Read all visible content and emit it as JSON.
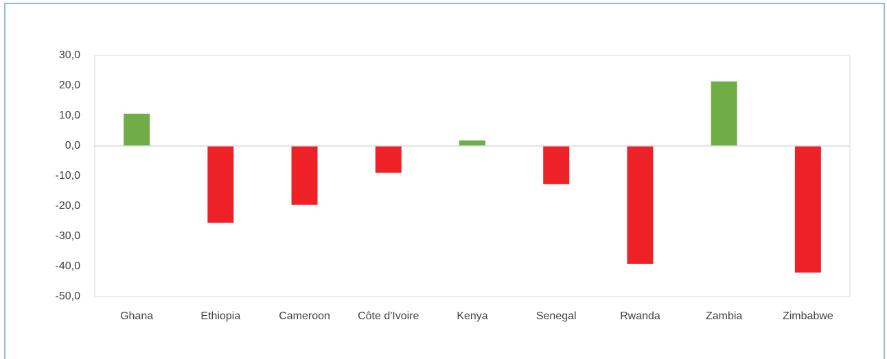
{
  "chart_data": {
    "type": "bar",
    "categories": [
      "Ghana",
      "Ethiopia",
      "Cameroon",
      "Côte d'Ivoire",
      "Kenya",
      "Senegal",
      "Rwanda",
      "Zambia",
      "Zimbabwe"
    ],
    "values": [
      10.7,
      -25.5,
      -19.5,
      -8.9,
      1.8,
      -12.7,
      -39.1,
      21.4,
      -42.0
    ],
    "positive_color": "#70ad47",
    "negative_color": "#ee2126",
    "ylim": [
      -50,
      30
    ],
    "yticks": [
      {
        "value": -50,
        "label": "-50,0"
      },
      {
        "value": -40,
        "label": "-40,0"
      },
      {
        "value": -30,
        "label": "-30,0"
      },
      {
        "value": -20,
        "label": "-20,0"
      },
      {
        "value": -10,
        "label": "-10,0"
      },
      {
        "value": 0,
        "label": "0,0"
      },
      {
        "value": 10,
        "label": "10,0"
      },
      {
        "value": 20,
        "label": "20,0"
      },
      {
        "value": 30,
        "label": "30,0"
      }
    ],
    "grid": false
  }
}
